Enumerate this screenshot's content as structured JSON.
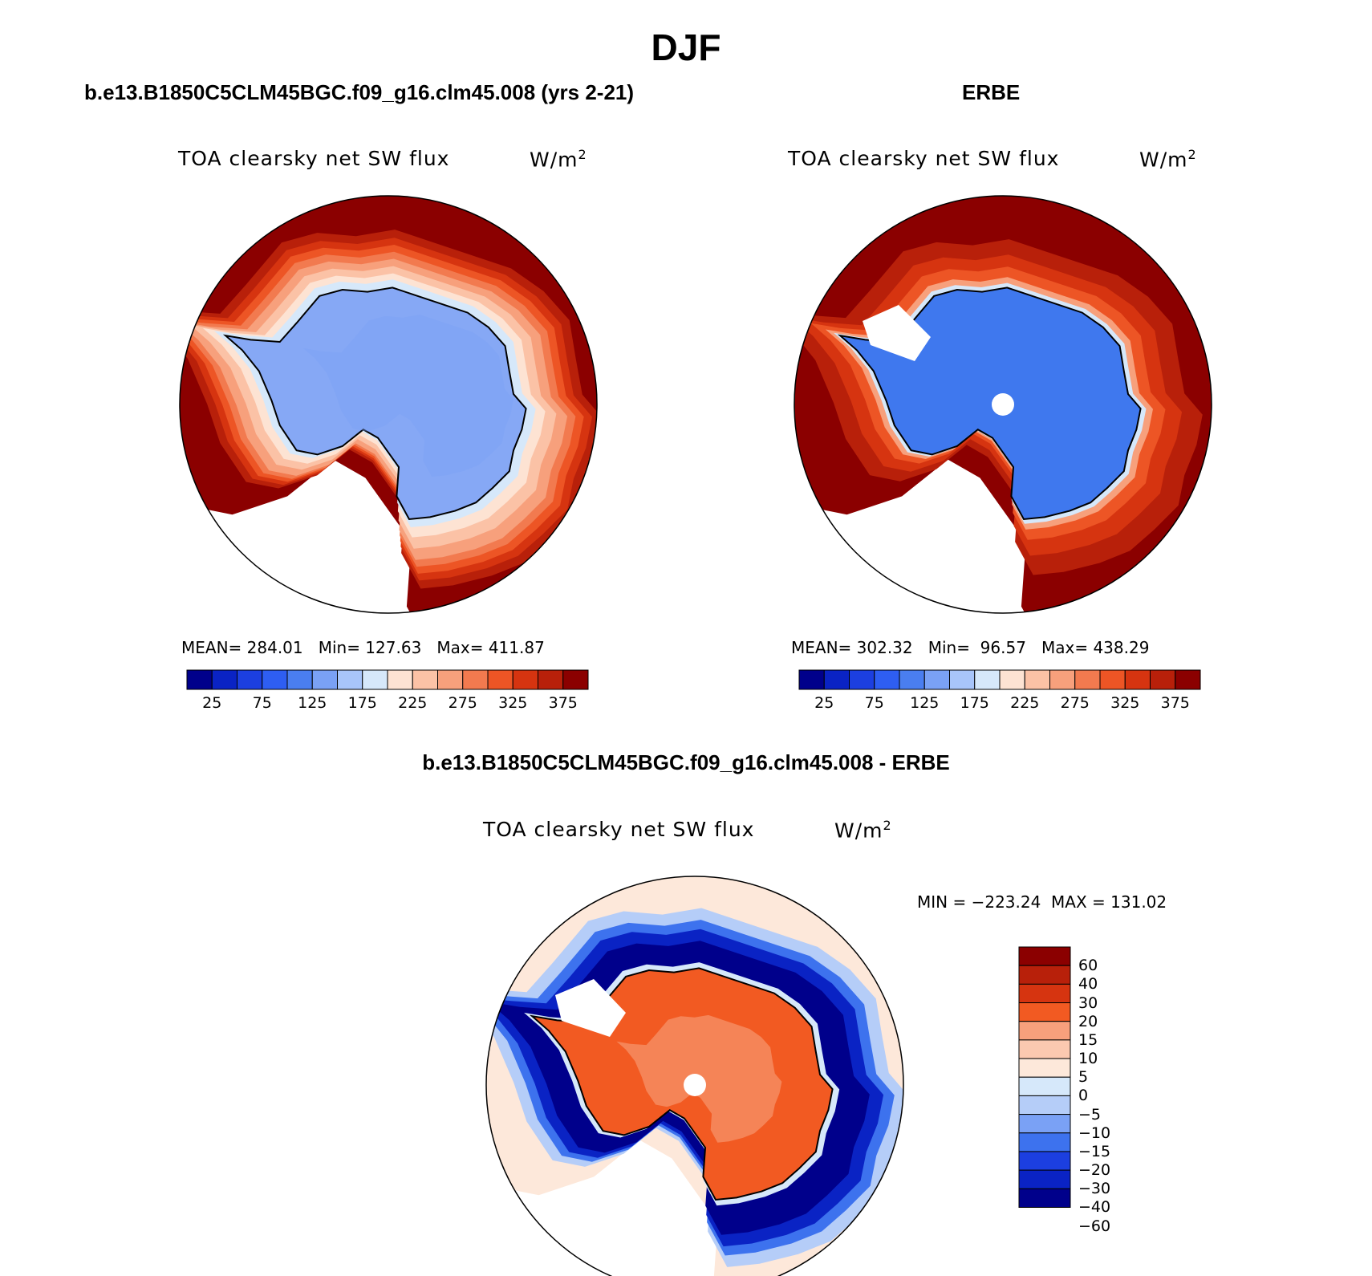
{
  "figure": {
    "title": "DJF"
  },
  "panels": [
    {
      "id": "model",
      "title": "b.e13.B1850C5CLM45BGC.f09_g16.clm45.008 (yrs 2-21)",
      "variable": "TOA clearsky net SW flux",
      "units": "W/m",
      "units_exp": "2",
      "stats": "MEAN= 284.01   Min= 127.63   Max= 411.87",
      "colorbar_ticks": [
        "25",
        "75",
        "125",
        "175",
        "225",
        "275",
        "325",
        "375"
      ]
    },
    {
      "id": "obs",
      "title": "ERBE",
      "variable": "TOA clearsky net SW flux",
      "units": "W/m",
      "units_exp": "2",
      "stats": "MEAN= 302.32   Min=  96.57   Max= 438.29",
      "colorbar_ticks": [
        "25",
        "75",
        "125",
        "175",
        "225",
        "275",
        "325",
        "375"
      ]
    },
    {
      "id": "diff",
      "title": "b.e13.B1850C5CLM45BGC.f09_g16.clm45.008 - ERBE",
      "variable": "TOA clearsky net SW flux",
      "units": "W/m",
      "units_exp": "2",
      "stats": "MIN = −223.24  MAX = 131.02",
      "colorbar_ticks": [
        "60",
        "40",
        "30",
        "20",
        "15",
        "10",
        "5",
        "0",
        "−5",
        "−10",
        "−15",
        "−20",
        "−30",
        "−40",
        "−60"
      ]
    }
  ],
  "colors": {
    "sequential": [
      "#00008b",
      "#0a23c4",
      "#1c3fe0",
      "#2e5ef2",
      "#4a7ef0",
      "#7aa1f5",
      "#a8c5fa",
      "#d6e8fa",
      "#fde3d3",
      "#fbc2a6",
      "#f7a07c",
      "#f27a4f",
      "#ed5525",
      "#d63410",
      "#b8200a",
      "#8b0000"
    ],
    "diverging": [
      "#8b0000",
      "#b8200a",
      "#d63410",
      "#f25a22",
      "#f7a07c",
      "#fbc9b0",
      "#fde8da",
      "#d6e8fa",
      "#b5cdf8",
      "#7aa1f5",
      "#3d72ee",
      "#1c3fe0",
      "#0a23c4",
      "#00008b"
    ],
    "antarctica_model": "#86a8f5",
    "antarctica_obs": "#3f78ee",
    "antarctica_diff": "#f25a22",
    "ocean_high": "#8b0000"
  }
}
